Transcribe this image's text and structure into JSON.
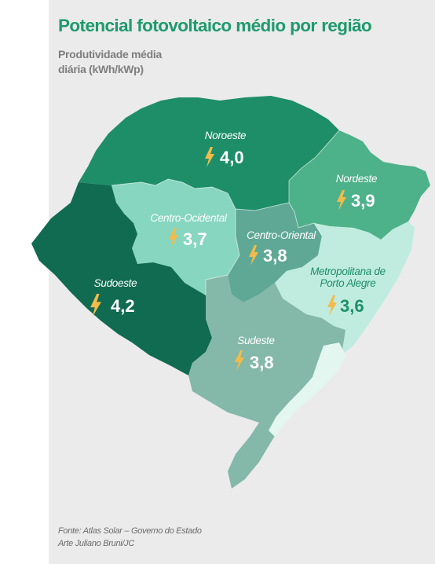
{
  "title": "Potencial fotovoltaico médio por região",
  "subtitle": [
    "Produtividade média",
    "diária (kWh/kWp)"
  ],
  "regions": [
    {
      "id": "noroeste",
      "name": "Noroeste",
      "value": "4,0",
      "color": "#1e8e68",
      "label_color": "#ffffff",
      "value_color": "#ffffff"
    },
    {
      "id": "nordeste",
      "name": "Nordeste",
      "value": "3,9",
      "color": "#4db18a",
      "label_color": "#ffffff",
      "value_color": "#ffffff"
    },
    {
      "id": "centro-ocidental",
      "name": "Centro-Ocidental",
      "value": "3,7",
      "color": "#87d6c0",
      "label_color": "#ffffff",
      "value_color": "#ffffff"
    },
    {
      "id": "centro-oriental",
      "name": "Centro-Oriental",
      "value": "3,8",
      "color": "#5fa895",
      "label_color": "#ffffff",
      "value_color": "#ffffff"
    },
    {
      "id": "metropolitana",
      "name_lines": [
        "Metropolitana de",
        "Porto Alegre"
      ],
      "value": "3,6",
      "color": "#bfecdf",
      "label_color": "#1e8e68",
      "value_color": "#1e8e68"
    },
    {
      "id": "sudoeste",
      "name": "Sudoeste",
      "value": "4,2",
      "color": "#106b50",
      "label_color": "#ffffff",
      "value_color": "#ffffff"
    },
    {
      "id": "sudeste",
      "name": "Sudeste",
      "value": "3,8",
      "color": "#84b8a9",
      "label_color": "#ffffff",
      "value_color": "#ffffff"
    }
  ],
  "colors": {
    "lagoon": "#e4f6f0",
    "bolt": "#f3bb4a",
    "title": "#1e9a6e"
  },
  "icon": "lightning-bolt-icon",
  "footer": [
    "Fonte: Atlas Solar – Governo do Estado",
    "Arte Juliano Bruni/JC"
  ]
}
